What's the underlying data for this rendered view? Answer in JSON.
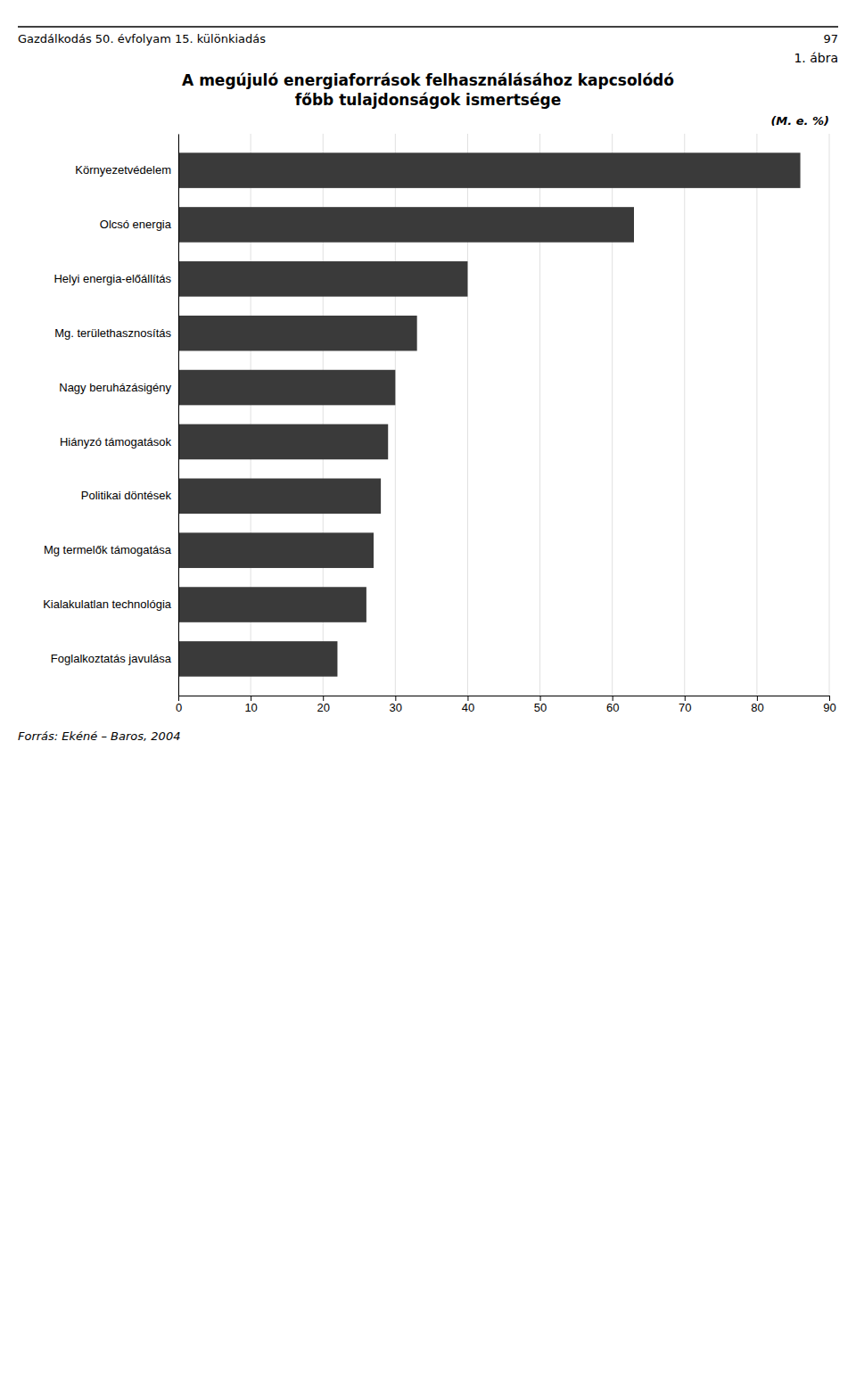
{
  "chart_data": {
    "type": "bar",
    "orientation": "horizontal",
    "title": "A megújuló energiaforrások felhasználásához kapcsolódó\nfőbb tulajdonságok ismertsége",
    "xlabel": "(M. e. %)",
    "annotations": [
      "Gazdálkodás 50. évfolyam 15. különkiadás",
      "97",
      "1. ábra",
      "Forrás: Ekéné – Baros, 2004"
    ],
    "categories": [
      "Környezetvédelem",
      "Olcsó energia",
      "Helyi energia-előállítás",
      "Mg. területhasznosítás",
      "Nagy beruházásigény",
      "Hiányzó támogatások",
      "Politikai döntések",
      "Mg termelők támogatása",
      "Kialakulatlan technológia",
      "Foglalkoztatás javulása"
    ],
    "values": [
      86,
      63,
      40,
      33,
      30,
      29,
      28,
      27,
      26,
      22
    ],
    "color": "#3a3a3a",
    "xlim": [
      0,
      90
    ],
    "xticks": [
      0,
      10,
      20,
      30,
      40,
      50,
      60,
      70,
      80,
      90
    ],
    "grid": true
  }
}
